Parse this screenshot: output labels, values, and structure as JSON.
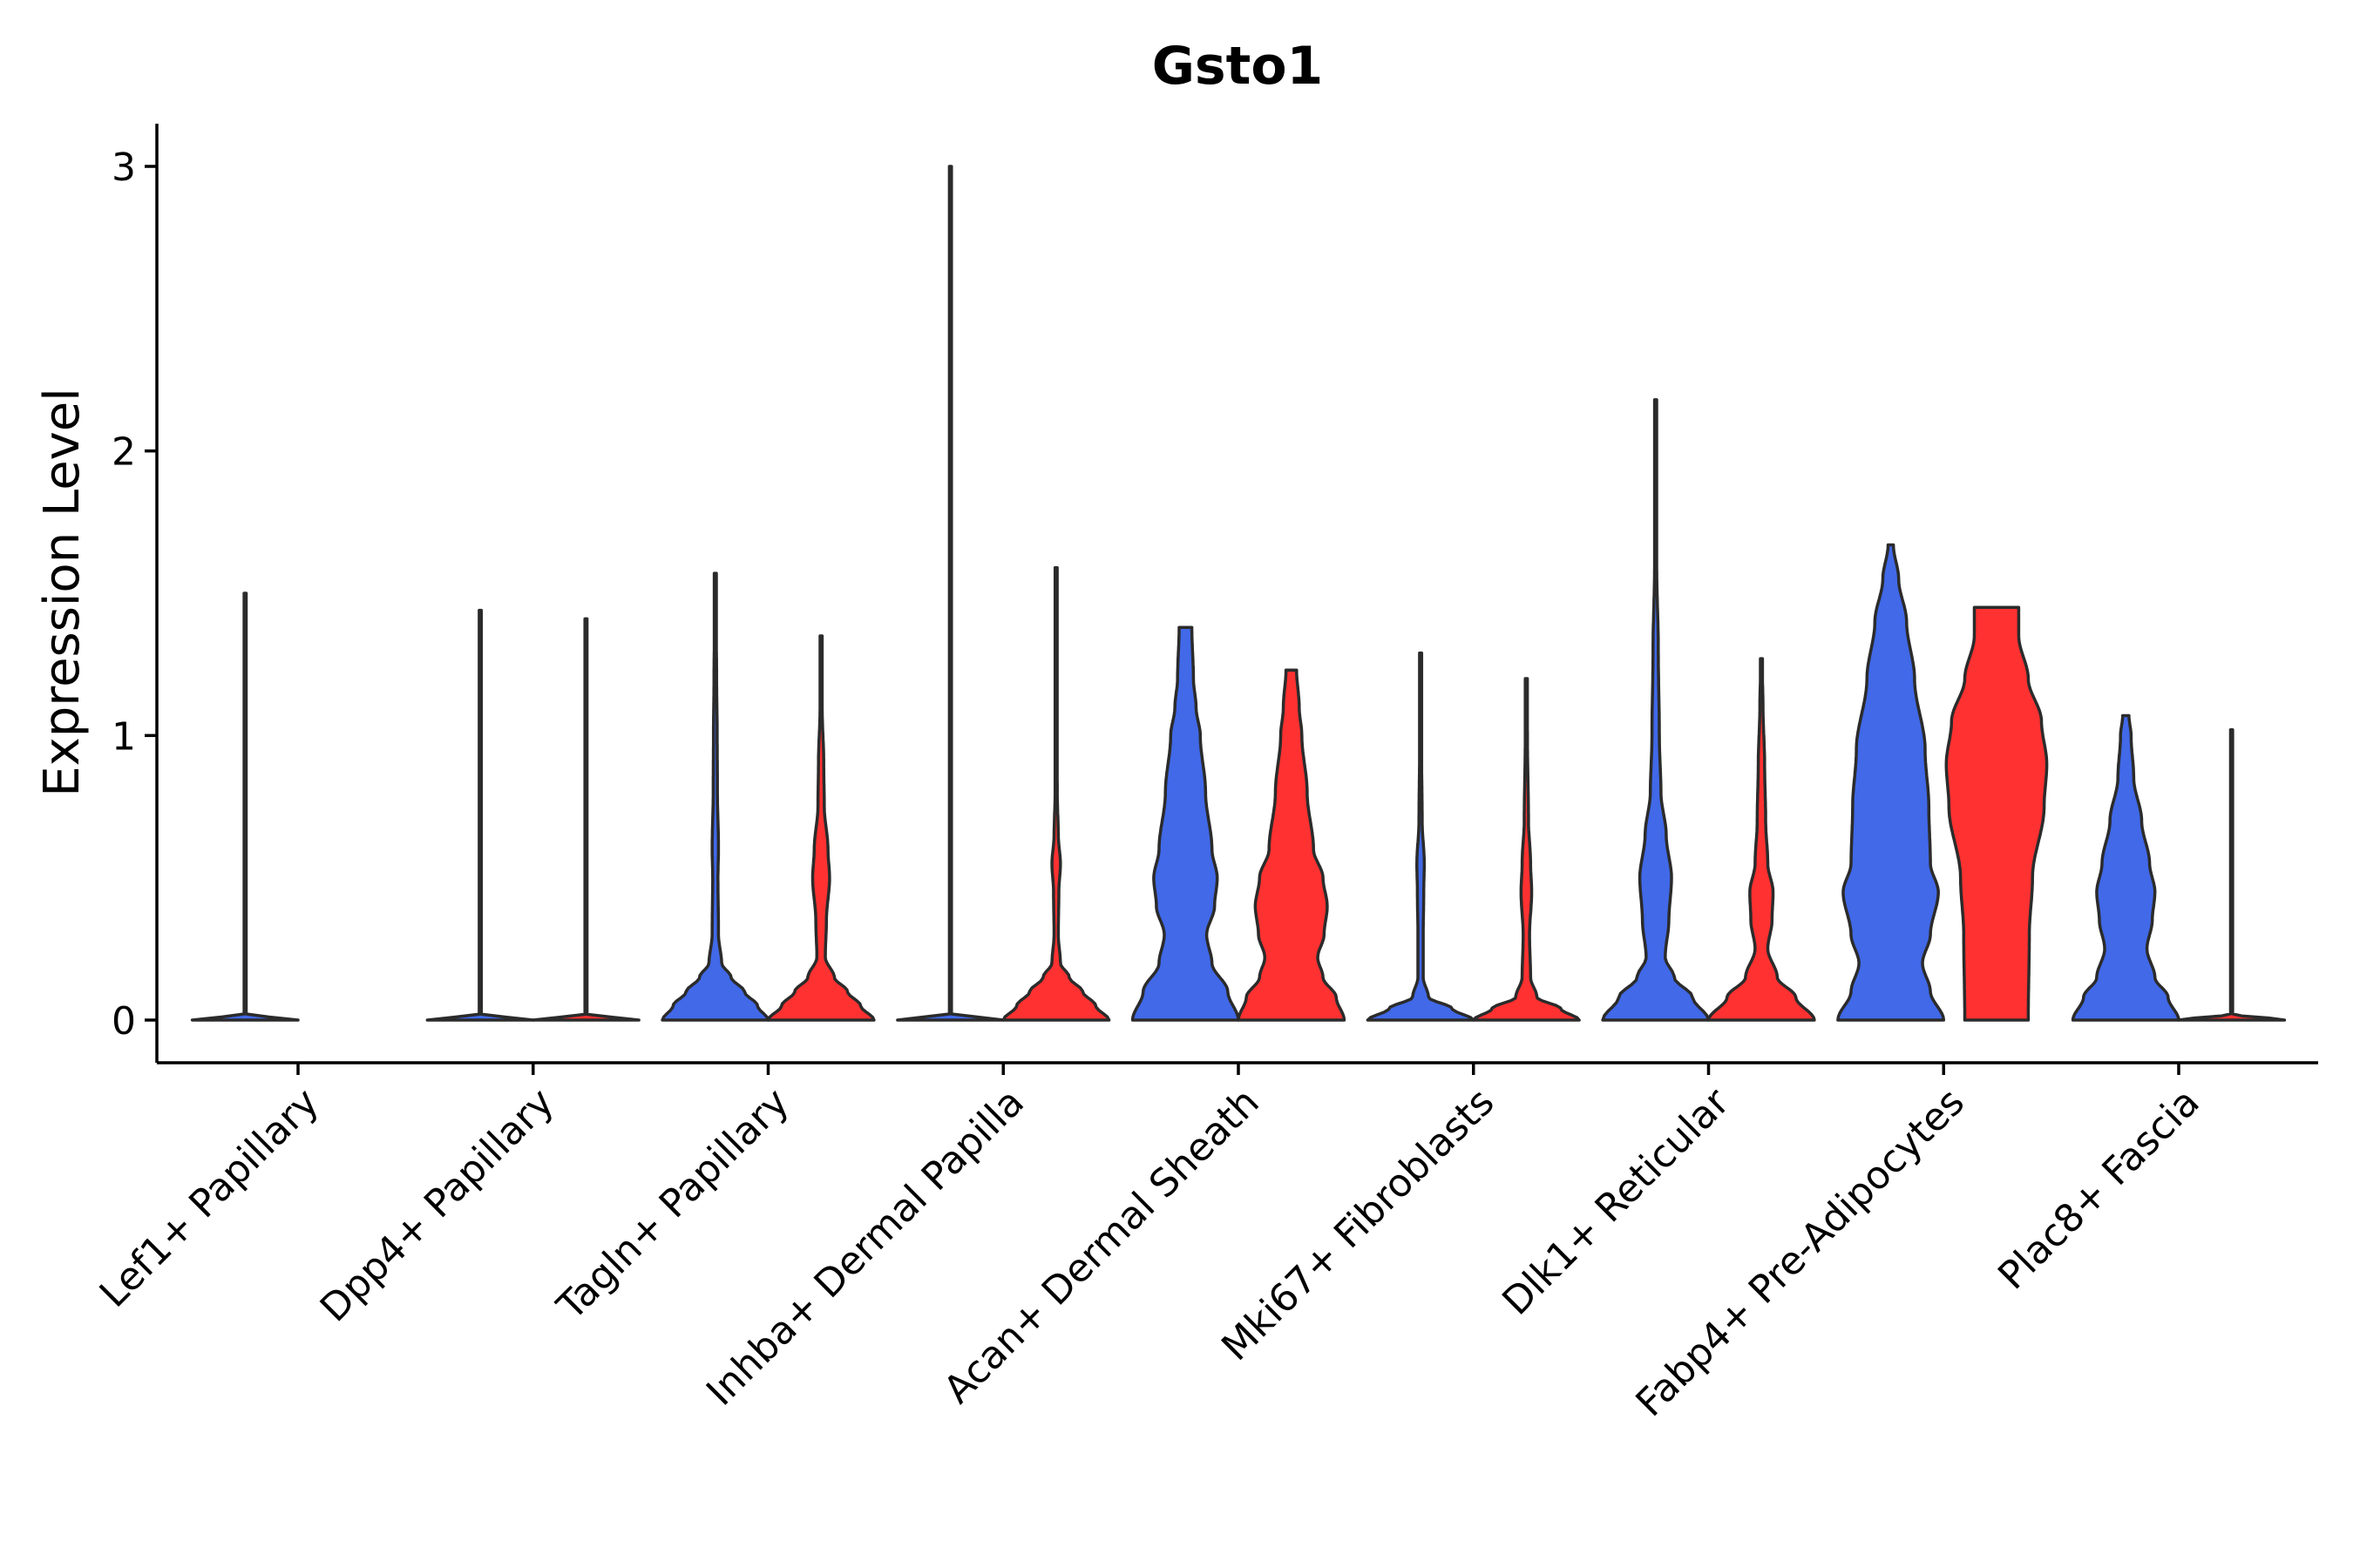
{
  "chart_data": {
    "type": "violin",
    "title": "Gsto1",
    "xlabel": "",
    "ylabel": "Expression Level",
    "ylim": [
      -0.15,
      3.15
    ],
    "yticks": [
      0,
      1,
      2,
      3
    ],
    "grid": false,
    "legend": "none",
    "series": [
      {
        "name": "group 1",
        "color": "#4169E8"
      },
      {
        "name": "group 2",
        "color": "#FF3131"
      }
    ],
    "categories": [
      "Lef1+ Papillary",
      "Dpp4+ Papillary",
      "Tagln+ Papillary",
      "Inhba+ Dermal Papilla",
      "Acan+ Dermal Sheath",
      "Mki67+ Fibroblasts",
      "Dlk1+ Reticular",
      "Fabp4+ Pre-Adipocytes",
      "Plac8+ Fascia"
    ],
    "violins": [
      {
        "category": "Lef1+ Papillary",
        "series": 0,
        "max": 1.5,
        "profile": [
          [
            0,
            1
          ],
          [
            0.02,
            0.01
          ],
          [
            0.6,
            0.003
          ],
          [
            1.5,
            0.003
          ]
        ]
      },
      {
        "category": "Dpp4+ Papillary",
        "series": 0,
        "max": 1.44,
        "profile": [
          [
            0,
            1
          ],
          [
            0.02,
            0.01
          ],
          [
            0.6,
            0.003
          ],
          [
            1.44,
            0.003
          ]
        ]
      },
      {
        "category": "Dpp4+ Papillary",
        "series": 1,
        "max": 1.41,
        "profile": [
          [
            0,
            1
          ],
          [
            0.02,
            0.01
          ],
          [
            0.6,
            0.003
          ],
          [
            1.41,
            0.003
          ]
        ]
      },
      {
        "category": "Tagln+ Papillary",
        "series": 0,
        "max": 1.57,
        "profile": [
          [
            0,
            1
          ],
          [
            0.05,
            0.8
          ],
          [
            0.1,
            0.55
          ],
          [
            0.15,
            0.3
          ],
          [
            0.2,
            0.12
          ],
          [
            0.3,
            0.06
          ],
          [
            0.5,
            0.05
          ],
          [
            0.6,
            0.06
          ],
          [
            0.8,
            0.04
          ],
          [
            1.0,
            0.035
          ],
          [
            1.2,
            0.025
          ],
          [
            1.4,
            0.015
          ],
          [
            1.57,
            0.01
          ]
        ]
      },
      {
        "category": "Tagln+ Papillary",
        "series": 1,
        "max": 1.35,
        "profile": [
          [
            0,
            1
          ],
          [
            0.05,
            0.75
          ],
          [
            0.1,
            0.5
          ],
          [
            0.15,
            0.25
          ],
          [
            0.22,
            0.08
          ],
          [
            0.35,
            0.1
          ],
          [
            0.5,
            0.16
          ],
          [
            0.6,
            0.13
          ],
          [
            0.75,
            0.06
          ],
          [
            0.9,
            0.05
          ],
          [
            1.1,
            0.02
          ],
          [
            1.35,
            0.01
          ]
        ]
      },
      {
        "category": "Inhba+ Dermal Papilla",
        "series": 0,
        "max": 3.0,
        "profile": [
          [
            0,
            1
          ],
          [
            0.02,
            0.01
          ],
          [
            0.5,
            0.003
          ],
          [
            3.0,
            0.003
          ]
        ]
      },
      {
        "category": "Inhba+ Dermal Papilla",
        "series": 1,
        "max": 1.59,
        "profile": [
          [
            0,
            1
          ],
          [
            0.05,
            0.75
          ],
          [
            0.1,
            0.5
          ],
          [
            0.15,
            0.25
          ],
          [
            0.2,
            0.08
          ],
          [
            0.3,
            0.04
          ],
          [
            0.45,
            0.05
          ],
          [
            0.55,
            0.08
          ],
          [
            0.65,
            0.04
          ],
          [
            0.8,
            0.02
          ],
          [
            1.2,
            0.015
          ],
          [
            1.59,
            0.01
          ]
        ]
      },
      {
        "category": "Acan+ Dermal Sheath",
        "series": 0,
        "max": 1.38,
        "profile": [
          [
            0,
            1
          ],
          [
            0.1,
            0.8
          ],
          [
            0.2,
            0.5
          ],
          [
            0.3,
            0.4
          ],
          [
            0.4,
            0.55
          ],
          [
            0.5,
            0.6
          ],
          [
            0.6,
            0.5
          ],
          [
            0.8,
            0.38
          ],
          [
            1.0,
            0.28
          ],
          [
            1.1,
            0.2
          ],
          [
            1.2,
            0.15
          ],
          [
            1.38,
            0.12
          ]
        ]
      },
      {
        "category": "Acan+ Dermal Sheath",
        "series": 1,
        "max": 1.23,
        "profile": [
          [
            0,
            1
          ],
          [
            0.08,
            0.85
          ],
          [
            0.15,
            0.6
          ],
          [
            0.22,
            0.5
          ],
          [
            0.3,
            0.62
          ],
          [
            0.4,
            0.68
          ],
          [
            0.5,
            0.6
          ],
          [
            0.6,
            0.42
          ],
          [
            0.8,
            0.3
          ],
          [
            1.0,
            0.2
          ],
          [
            1.1,
            0.15
          ],
          [
            1.23,
            0.1
          ]
        ]
      },
      {
        "category": "Mki67+ Fibroblasts",
        "series": 0,
        "max": 1.29,
        "profile": [
          [
            0,
            1
          ],
          [
            0.04,
            0.6
          ],
          [
            0.08,
            0.15
          ],
          [
            0.15,
            0.05
          ],
          [
            0.3,
            0.05
          ],
          [
            0.45,
            0.06
          ],
          [
            0.55,
            0.07
          ],
          [
            0.7,
            0.03
          ],
          [
            1.0,
            0.015
          ],
          [
            1.29,
            0.01
          ]
        ]
      },
      {
        "category": "Mki67+ Fibroblasts",
        "series": 1,
        "max": 1.2,
        "profile": [
          [
            0,
            1
          ],
          [
            0.04,
            0.65
          ],
          [
            0.08,
            0.2
          ],
          [
            0.15,
            0.08
          ],
          [
            0.3,
            0.06
          ],
          [
            0.45,
            0.1
          ],
          [
            0.55,
            0.08
          ],
          [
            0.7,
            0.04
          ],
          [
            1.0,
            0.02
          ],
          [
            1.2,
            0.01
          ]
        ]
      },
      {
        "category": "Dlk1+ Reticular",
        "series": 0,
        "max": 2.18,
        "profile": [
          [
            0,
            1
          ],
          [
            0.08,
            0.7
          ],
          [
            0.15,
            0.35
          ],
          [
            0.22,
            0.18
          ],
          [
            0.35,
            0.25
          ],
          [
            0.5,
            0.3
          ],
          [
            0.65,
            0.2
          ],
          [
            0.8,
            0.1
          ],
          [
            1.0,
            0.07
          ],
          [
            1.3,
            0.05
          ],
          [
            1.6,
            0.02
          ],
          [
            2.18,
            0.01
          ]
        ]
      },
      {
        "category": "Dlk1+ Reticular",
        "series": 1,
        "max": 1.27,
        "profile": [
          [
            0,
            1
          ],
          [
            0.08,
            0.65
          ],
          [
            0.15,
            0.3
          ],
          [
            0.25,
            0.12
          ],
          [
            0.35,
            0.2
          ],
          [
            0.45,
            0.22
          ],
          [
            0.55,
            0.12
          ],
          [
            0.7,
            0.08
          ],
          [
            0.9,
            0.06
          ],
          [
            1.1,
            0.03
          ],
          [
            1.27,
            0.01
          ]
        ]
      },
      {
        "category": "Fabp4+ Pre-Adipocytes",
        "series": 0,
        "max": 1.67,
        "profile": [
          [
            0,
            1
          ],
          [
            0.1,
            0.75
          ],
          [
            0.2,
            0.6
          ],
          [
            0.3,
            0.75
          ],
          [
            0.45,
            0.9
          ],
          [
            0.55,
            0.75
          ],
          [
            0.75,
            0.72
          ],
          [
            0.95,
            0.65
          ],
          [
            1.2,
            0.45
          ],
          [
            1.4,
            0.3
          ],
          [
            1.55,
            0.15
          ],
          [
            1.67,
            0.05
          ]
        ]
      },
      {
        "category": "Fabp4+ Pre-Adipocytes",
        "series": 1,
        "max": 1.45,
        "profile": [
          [
            0,
            0.6
          ],
          [
            0.3,
            0.62
          ],
          [
            0.5,
            0.68
          ],
          [
            0.75,
            0.9
          ],
          [
            0.9,
            0.95
          ],
          [
            1.05,
            0.85
          ],
          [
            1.2,
            0.6
          ],
          [
            1.35,
            0.42
          ],
          [
            1.45,
            0.42
          ]
        ]
      },
      {
        "category": "Plac8+ Fascia",
        "series": 0,
        "max": 1.07,
        "profile": [
          [
            0,
            1
          ],
          [
            0.08,
            0.8
          ],
          [
            0.15,
            0.55
          ],
          [
            0.25,
            0.4
          ],
          [
            0.35,
            0.5
          ],
          [
            0.45,
            0.55
          ],
          [
            0.55,
            0.45
          ],
          [
            0.7,
            0.3
          ],
          [
            0.85,
            0.15
          ],
          [
            1.0,
            0.1
          ],
          [
            1.07,
            0.06
          ]
        ]
      },
      {
        "category": "Plac8+ Fascia",
        "series": 1,
        "max": 1.02,
        "profile": [
          [
            0,
            1
          ],
          [
            0.02,
            0.01
          ],
          [
            0.5,
            0.003
          ],
          [
            1.02,
            0.003
          ]
        ]
      }
    ]
  }
}
